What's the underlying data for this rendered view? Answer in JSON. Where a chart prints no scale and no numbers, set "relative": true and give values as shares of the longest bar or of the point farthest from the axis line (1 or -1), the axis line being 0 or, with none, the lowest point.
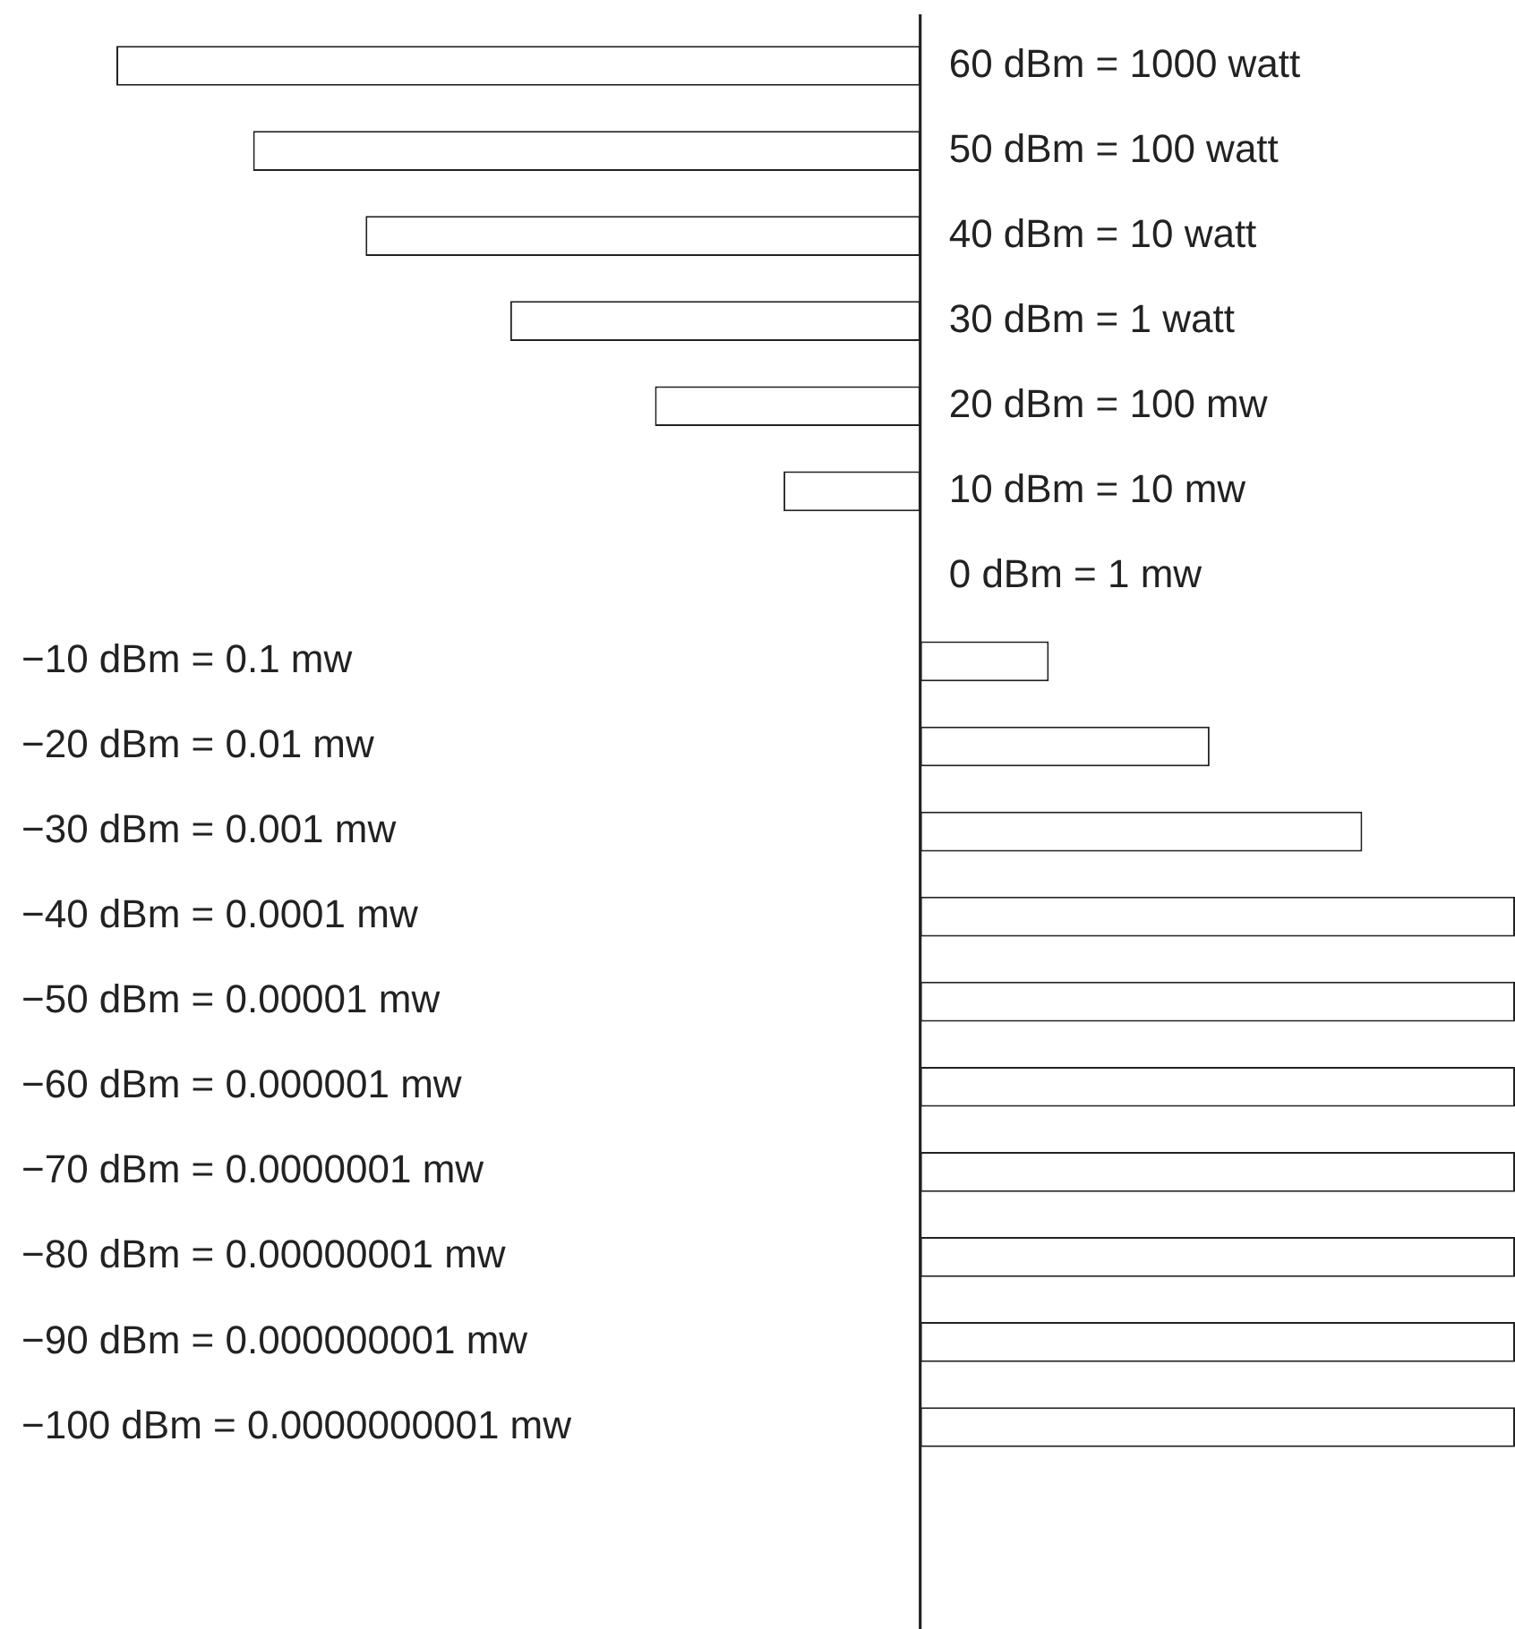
{
  "chart_data": {
    "type": "bar",
    "orientation": "horizontal",
    "relative": true,
    "categories": [
      "60 dBm = 1000 watt",
      "50 dBm = 100 watt",
      "40 dBm = 10 watt",
      "30 dBm = 1 watt",
      "20 dBm = 100 mw",
      "10 dBm = 10 mw",
      "0 dBm = 1 mw",
      "−10 dBm = 0.1 mw",
      "−20 dBm = 0.01 mw",
      "−30 dBm = 0.001 mw",
      "−40 dBm = 0.0001 mw",
      "−50 dBm = 0.00001 mw",
      "−60 dBm = 0.000001 mw",
      "−70 dBm = 0.0000001 mw",
      "−80 dBm = 0.00000001 mw",
      "−90 dBm = 0.000000001 mw",
      "−100 dBm = 0.0000000001 mw"
    ],
    "values": [
      -1,
      -0.83,
      -0.69,
      -0.51,
      -0.33,
      -0.17,
      0,
      0.16,
      0.36,
      0.55,
      0.74,
      0.74,
      0.74,
      0.74,
      0.74,
      0.74,
      0.74
    ],
    "color": "#ffffff"
  }
}
